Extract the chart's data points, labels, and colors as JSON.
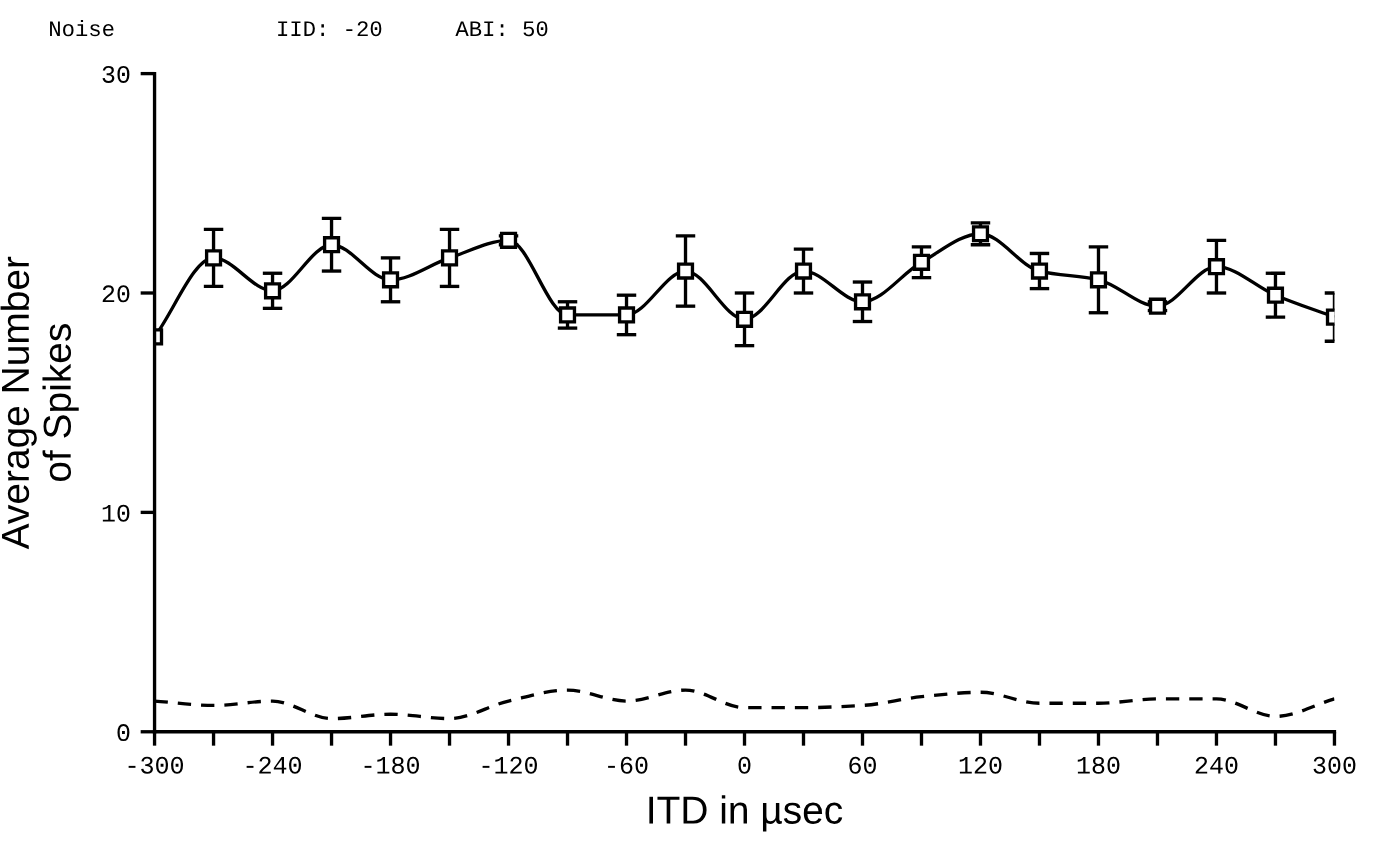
{
  "chart_data": {
    "type": "line",
    "xlabel": "ITD in µsec",
    "ylabel": "Average Number\nof Spikes",
    "annotations": [
      "Noise",
      "IID: -20",
      "ABI: 50"
    ],
    "x": [
      -300,
      -270,
      -240,
      -210,
      -180,
      -150,
      -120,
      -90,
      -60,
      -30,
      0,
      30,
      60,
      90,
      120,
      150,
      180,
      210,
      240,
      270,
      300
    ],
    "series": [
      {
        "color": "#000000",
        "marker": "square",
        "line_style": "solid",
        "values": [
          18,
          21.6,
          20.1,
          22.2,
          20.6,
          21.6,
          22.4,
          19,
          19,
          21,
          18.8,
          21,
          19.6,
          21.4,
          22.7,
          21,
          20.6,
          19.4,
          21.2,
          19.9,
          18.9
        ],
        "errors": [
          null,
          1.3,
          0.8,
          1.2,
          1.0,
          1.3,
          0.2,
          0.6,
          0.9,
          1.6,
          1.2,
          1.0,
          0.9,
          0.7,
          0.5,
          0.8,
          1.5,
          0.2,
          1.2,
          1.0,
          1.1
        ]
      },
      {
        "color": "#000000",
        "marker": "none",
        "line_style": "dashed",
        "values": [
          1.4,
          1.2,
          1.4,
          0.6,
          0.8,
          0.6,
          1.4,
          1.9,
          1.4,
          1.9,
          1.1,
          1.1,
          1.2,
          1.6,
          1.8,
          1.3,
          1.3,
          1.5,
          1.5,
          0.7,
          1.5
        ]
      }
    ],
    "xlim": [
      -300,
      300
    ],
    "ylim": [
      0,
      30
    ],
    "xticks": [
      -300,
      {
        "value": -270,
        "label": null
      },
      -240,
      {
        "value": -210,
        "label": null
      },
      -180,
      {
        "value": -150,
        "label": null
      },
      -120,
      {
        "value": -90,
        "label": null
      },
      -60,
      {
        "value": -30,
        "label": null
      },
      0,
      {
        "value": 30,
        "label": null
      },
      60,
      {
        "value": 90,
        "label": null
      },
      120,
      {
        "value": 150,
        "label": null
      },
      180,
      {
        "value": 210,
        "label": null
      },
      240,
      {
        "value": 270,
        "label": null
      },
      300
    ],
    "yticks": [
      0,
      10,
      20,
      30
    ],
    "grid": false,
    "legend": false
  }
}
